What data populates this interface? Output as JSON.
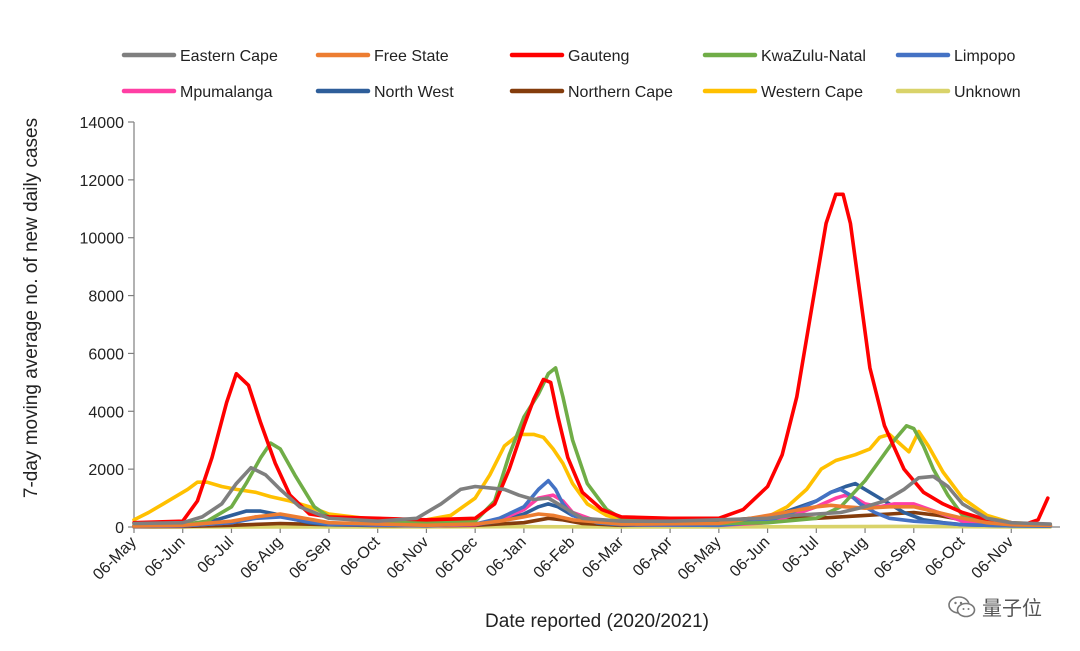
{
  "chart_data": {
    "type": "line",
    "title": "",
    "xlabel": "Date reported (2020/2021)",
    "ylabel": "7-day moving average no. of new daily cases",
    "ylim": [
      0,
      14000
    ],
    "yticks": [
      0,
      2000,
      4000,
      6000,
      8000,
      10000,
      12000,
      14000
    ],
    "x_range_months": [
      0,
      19
    ],
    "x_tick_labels": [
      "06-May",
      "06-Jun",
      "06-Jul",
      "06-Aug",
      "06-Sep",
      "06-Oct",
      "06-Nov",
      "06-Dec",
      "06-Jan",
      "06-Feb",
      "06-Mar",
      "06-Apr",
      "06-May",
      "06-Jun",
      "06-Jul",
      "06-Aug",
      "06-Sep",
      "06-Oct",
      "06-Nov"
    ],
    "legend_position": "top",
    "series": [
      {
        "name": "Eastern Cape",
        "color": "#7f7f7f",
        "x": [
          0,
          1,
          1.4,
          1.8,
          2.1,
          2.4,
          2.7,
          3,
          3.4,
          4,
          5,
          5.8,
          6.3,
          6.7,
          7,
          7.3,
          7.6,
          7.9,
          8.2,
          8.5,
          8.8,
          9.2,
          10,
          11,
          12,
          13,
          13.5,
          14,
          14.5,
          15,
          15.4,
          15.8,
          16.1,
          16.4,
          16.7,
          17,
          17.5,
          18,
          18.8
        ],
        "y": [
          120,
          150,
          350,
          800,
          1500,
          2050,
          1800,
          1300,
          700,
          300,
          200,
          300,
          800,
          1300,
          1400,
          1350,
          1300,
          1100,
          950,
          1000,
          700,
          300,
          200,
          200,
          250,
          300,
          400,
          450,
          500,
          700,
          900,
          1300,
          1700,
          1750,
          1400,
          800,
          300,
          150,
          100
        ]
      },
      {
        "name": "Free State",
        "color": "#ed7d31",
        "x": [
          0,
          1,
          2,
          2.5,
          3,
          3.5,
          4,
          6,
          7,
          7.5,
          8,
          8.3,
          8.6,
          9,
          10,
          12,
          13,
          13.5,
          14,
          14.3,
          14.6,
          15,
          15.5,
          16,
          16.5,
          17,
          17.5,
          18,
          18.8
        ],
        "y": [
          30,
          60,
          200,
          350,
          450,
          300,
          150,
          60,
          100,
          200,
          350,
          450,
          400,
          250,
          100,
          120,
          400,
          550,
          700,
          750,
          700,
          650,
          700,
          700,
          500,
          300,
          150,
          80,
          60
        ]
      },
      {
        "name": "Gauteng",
        "color": "#ff0000",
        "x": [
          0,
          1,
          1.3,
          1.6,
          1.9,
          2.1,
          2.35,
          2.6,
          2.9,
          3.2,
          3.6,
          4,
          5,
          6,
          7,
          7.4,
          7.7,
          8,
          8.2,
          8.4,
          8.55,
          8.7,
          8.9,
          9.2,
          9.6,
          10,
          11,
          12,
          12.5,
          13,
          13.3,
          13.6,
          13.9,
          14.2,
          14.4,
          14.55,
          14.7,
          14.9,
          15.1,
          15.4,
          15.8,
          16.2,
          16.6,
          17,
          17.5,
          18,
          18.3,
          18.55,
          18.75
        ],
        "y": [
          150,
          200,
          900,
          2400,
          4300,
          5300,
          4900,
          3600,
          2200,
          1100,
          450,
          350,
          300,
          250,
          300,
          800,
          2000,
          3500,
          4400,
          5100,
          5000,
          3800,
          2400,
          1200,
          600,
          350,
          300,
          300,
          600,
          1400,
          2500,
          4500,
          7500,
          10500,
          11500,
          11500,
          10500,
          8000,
          5500,
          3500,
          2000,
          1200,
          800,
          500,
          250,
          150,
          100,
          250,
          1000
        ]
      },
      {
        "name": "KwaZulu-Natal",
        "color": "#70ad47",
        "x": [
          0,
          1,
          1.5,
          2,
          2.3,
          2.6,
          2.8,
          3,
          3.3,
          3.7,
          4,
          5,
          6,
          7,
          7.4,
          7.7,
          8,
          8.3,
          8.5,
          8.65,
          8.8,
          9,
          9.3,
          9.7,
          10,
          11,
          12,
          13,
          14,
          14.5,
          15,
          15.3,
          15.6,
          15.85,
          16,
          16.2,
          16.4,
          16.7,
          17,
          17.5,
          18,
          18.8
        ],
        "y": [
          50,
          80,
          200,
          700,
          1500,
          2400,
          2900,
          2700,
          1800,
          700,
          350,
          200,
          150,
          200,
          900,
          2500,
          3800,
          4600,
          5300,
          5500,
          4500,
          3000,
          1500,
          600,
          300,
          150,
          120,
          150,
          300,
          700,
          1600,
          2300,
          3000,
          3500,
          3400,
          2800,
          2000,
          1100,
          400,
          150,
          80,
          60
        ]
      },
      {
        "name": "Limpopo",
        "color": "#4472c4",
        "x": [
          0,
          1,
          2,
          2.5,
          3,
          3.5,
          4,
          6,
          7,
          7.5,
          8,
          8.3,
          8.5,
          8.65,
          8.8,
          9,
          9.5,
          10,
          12,
          13,
          13.5,
          14,
          14.3,
          14.5,
          14.7,
          14.9,
          15.2,
          15.5,
          16,
          16.5,
          17,
          18,
          18.8
        ],
        "y": [
          20,
          40,
          150,
          300,
          350,
          200,
          100,
          40,
          100,
          300,
          700,
          1300,
          1600,
          1300,
          800,
          400,
          150,
          80,
          60,
          200,
          500,
          900,
          1200,
          1300,
          1100,
          800,
          500,
          300,
          200,
          150,
          80,
          40,
          30
        ]
      },
      {
        "name": "Mpumalanga",
        "color": "#ff3fa4",
        "x": [
          0,
          1,
          2,
          2.5,
          3,
          3.5,
          4,
          6,
          7,
          7.5,
          8,
          8.3,
          8.6,
          8.8,
          9,
          9.5,
          10,
          12,
          13,
          13.5,
          14,
          14.4,
          14.6,
          14.8,
          15,
          15.3,
          15.6,
          16,
          16.5,
          17,
          18,
          18.8
        ],
        "y": [
          20,
          40,
          150,
          350,
          400,
          250,
          100,
          40,
          80,
          250,
          600,
          1000,
          1100,
          900,
          500,
          200,
          80,
          60,
          150,
          400,
          700,
          1000,
          1100,
          1000,
          800,
          700,
          800,
          800,
          500,
          200,
          60,
          40
        ]
      },
      {
        "name": "North West",
        "color": "#2e5e9a",
        "x": [
          0,
          1,
          1.5,
          2,
          2.3,
          2.6,
          2.9,
          3.2,
          3.6,
          4,
          6,
          7,
          7.5,
          8,
          8.3,
          8.5,
          8.7,
          9,
          9.5,
          10,
          12,
          13,
          13.5,
          14,
          14.3,
          14.6,
          14.8,
          15,
          15.4,
          15.8,
          16.2,
          16.6,
          17,
          18,
          18.8
        ],
        "y": [
          30,
          50,
          150,
          400,
          550,
          550,
          450,
          300,
          150,
          80,
          50,
          80,
          200,
          450,
          700,
          800,
          700,
          400,
          150,
          80,
          80,
          300,
          600,
          900,
          1200,
          1400,
          1500,
          1300,
          900,
          500,
          250,
          150,
          80,
          40,
          30
        ]
      },
      {
        "name": "Northern Cape",
        "color": "#843c0c",
        "x": [
          0,
          1,
          2,
          3,
          4,
          5,
          6,
          7,
          8,
          8.5,
          8.8,
          9.2,
          10,
          11,
          12,
          13,
          14,
          15,
          15.5,
          16,
          16.5,
          17,
          17.5,
          18,
          18.8
        ],
        "y": [
          10,
          20,
          60,
          120,
          80,
          50,
          40,
          60,
          150,
          300,
          250,
          120,
          60,
          80,
          200,
          350,
          300,
          400,
          450,
          500,
          400,
          250,
          120,
          60,
          40
        ]
      },
      {
        "name": "Western Cape",
        "color": "#ffc000",
        "x": [
          0,
          0.3,
          0.6,
          0.9,
          1.1,
          1.3,
          1.5,
          1.8,
          2.1,
          2.5,
          2.8,
          3.2,
          3.6,
          4,
          5,
          6,
          6.5,
          7,
          7.3,
          7.6,
          7.9,
          8.2,
          8.4,
          8.6,
          8.8,
          9,
          9.3,
          9.7,
          10,
          11,
          12,
          12.5,
          13,
          13.4,
          13.8,
          14.1,
          14.4,
          14.8,
          15.1,
          15.3,
          15.5,
          15.7,
          15.9,
          16.1,
          16.3,
          16.6,
          17,
          17.5,
          18,
          18.8
        ],
        "y": [
          250,
          500,
          800,
          1100,
          1300,
          1550,
          1550,
          1400,
          1300,
          1200,
          1050,
          900,
          700,
          450,
          250,
          250,
          400,
          1000,
          1800,
          2800,
          3200,
          3200,
          3100,
          2700,
          2200,
          1500,
          800,
          400,
          250,
          200,
          150,
          150,
          350,
          700,
          1300,
          2000,
          2300,
          2500,
          2700,
          3100,
          3200,
          2900,
          2600,
          3300,
          2800,
          1900,
          1000,
          400,
          150,
          80
        ]
      },
      {
        "name": "Unknown",
        "color": "#d9d36a",
        "x": [
          0,
          2,
          4,
          6,
          8,
          10,
          12,
          14,
          16,
          17,
          18,
          18.8
        ],
        "y": [
          0,
          5,
          5,
          5,
          10,
          5,
          5,
          10,
          20,
          10,
          5,
          5
        ]
      }
    ]
  },
  "watermark": {
    "text": "量子位",
    "icon": "wechat-icon"
  }
}
